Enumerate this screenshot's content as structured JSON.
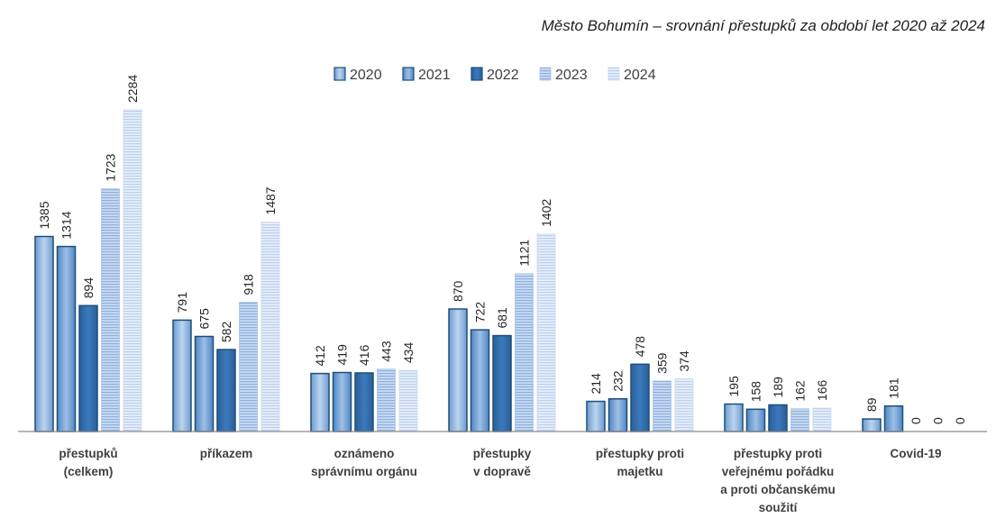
{
  "chart_data": {
    "type": "bar",
    "title": "Město Bohumín – srovnání přestupků za období let 2020 až 2024",
    "categories": [
      [
        "přestupků",
        "(celkem)"
      ],
      [
        "příkazem"
      ],
      [
        "oznámeno",
        "správnímu orgánu"
      ],
      [
        "přestupky",
        "v dopravě"
      ],
      [
        "přestupky proti",
        "majetku"
      ],
      [
        "přestupky proti",
        "veřejnému pořádku",
        "a proti občanskému",
        "soužití"
      ],
      [
        "Covid-19"
      ]
    ],
    "series": [
      {
        "name": "2020",
        "values": [
          1385,
          791,
          412,
          870,
          214,
          195,
          89
        ]
      },
      {
        "name": "2021",
        "values": [
          1314,
          675,
          419,
          722,
          232,
          158,
          181
        ]
      },
      {
        "name": "2022",
        "values": [
          894,
          582,
          416,
          681,
          478,
          189,
          0
        ]
      },
      {
        "name": "2023",
        "values": [
          1723,
          918,
          443,
          1121,
          359,
          162,
          0
        ]
      },
      {
        "name": "2024",
        "values": [
          2284,
          1487,
          434,
          1402,
          374,
          166,
          0
        ]
      }
    ],
    "ylim": [
      0,
      2284
    ],
    "grid": false,
    "legend_position": "top-center",
    "colors": {
      "2020": "#8db3df",
      "2021": "#6a9bd3",
      "2022": "#2e6aa6",
      "2023": "#a9c3e8",
      "2024": "#d3e1f4",
      "border": "#1f4e79",
      "axis": "#7f7f7f"
    }
  }
}
